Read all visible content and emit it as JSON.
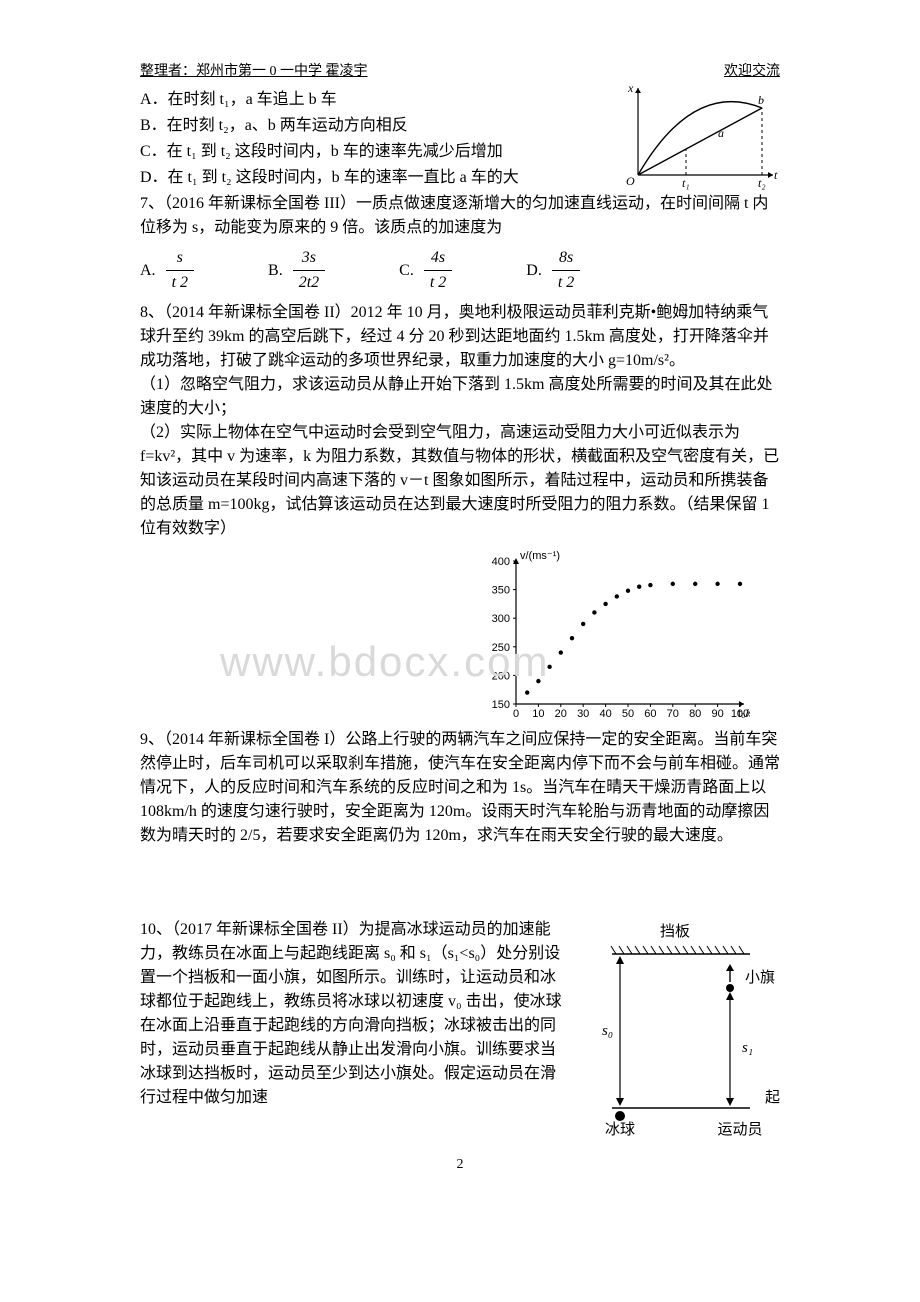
{
  "header": {
    "left": "整理者：郑州市第一 0 一中学  霍凌宇",
    "right": "欢迎交流"
  },
  "q6": {
    "A": "A．在时刻 t₁，a 车追上 b 车",
    "B": "B．在时刻 t₂，a、b 两车运动方向相反",
    "C": "C．在 t₁ 到 t₂ 这段时间内，b 车的速率先减少后增加",
    "D": "D．在 t₁ 到 t₂ 这段时间内，b 车的速率一直比 a 车的大"
  },
  "q7": {
    "stem": "7、（2016 年新课标全国卷 III）一质点做速度逐渐增大的匀加速直线运动，在时间间隔 t 内位移为 s，动能变为原来的 9 倍。该质点的加速度为",
    "options": {
      "A": {
        "label": "A.",
        "num": "s",
        "den": "t 2"
      },
      "B": {
        "label": "B.",
        "num": "3s",
        "den": "2t2"
      },
      "C": {
        "label": "C.",
        "num": "4s",
        "den": "t 2"
      },
      "D": {
        "label": "D.",
        "num": "8s",
        "den": "t 2"
      }
    }
  },
  "q8": {
    "stem": "8、（2014 年新课标全国卷 II）2012 年 10 月，奥地利极限运动员菲利克斯•鲍姆加特纳乘气球升至约 39km 的高空后跳下，经过 4 分 20 秒到达距地面约 1.5km 高度处，打开降落伞并成功落地，打破了跳伞运动的多项世界纪录，取重力加速度的大小 g=10m/s²。",
    "p1": "（1）忽略空气阻力，求该运动员从静止开始下落到 1.5km 高度处所需要的时间及其在此处速度的大小；",
    "p2": "（2）实际上物体在空气中运动时会受到空气阻力，高速运动受阻力大小可近似表示为 f=kv²，其中 v 为速率，k 为阻力系数，其数值与物体的形状，横截面积及空气密度有关，已知该运动员在某段时间内高速下落的 v－t 图象如图所示，着陆过程中，运动员和所携装备的总质量 m=100kg，试估算该运动员在达到最大速度时所受阻力的阻力系数。（结果保留 1 位有效数字）"
  },
  "q9": {
    "stem": "9、（2014 年新课标全国卷 I）公路上行驶的两辆汽车之间应保持一定的安全距离。当前车突然停止时，后车司机可以采取刹车措施，使汽车在安全距离内停下而不会与前车相碰。通常情况下，人的反应时间和汽车系统的反应时间之和为 1s。当汽车在晴天干燥沥青路面上以 108km/h 的速度匀速行驶时，安全距离为 120m。设雨天时汽车轮胎与沥青地面的动摩擦因数为晴天时的 2/5，若要求安全距离仍为 120m，求汽车在雨天安全行驶的最大速度。"
  },
  "q10": {
    "stem": "10、（2017 年新课标全国卷 II）为提高冰球运动员的加速能力，教练员在冰面上与起跑线距离 s₀ 和 s₁（s₁<s₀）处分别设置一个挡板和一面小旗，如图所示。训练时，让运动员和冰球都位于起跑线上，教练员将冰球以初速度 v₀ 击出，使冰球在冰面上沿垂直于起跑线的方向滑向挡板；冰球被击出的同时，运动员垂直于起跑线从静止出发滑向小旗。训练要求当冰球到达挡板时，运动员至少到达小旗处。假定运动员在滑行过程中做匀加速"
  },
  "watermark": "www.bdocx.com",
  "xt_chart": {
    "y_label": "x",
    "x_label": "t",
    "t1_label": "t₁",
    "t2_label": "t₂",
    "a_label": "a",
    "b_label": "b",
    "axis_color": "#000000",
    "curve_color": "#000000",
    "dash_color": "#000000"
  },
  "vt_chart": {
    "y_label": "v/(ms⁻¹)",
    "x_label": "t₀/s",
    "y_ticks": [
      150,
      200,
      250,
      300,
      350,
      400
    ],
    "x_ticks": [
      0,
      10,
      20,
      30,
      40,
      50,
      60,
      70,
      80,
      90,
      100
    ],
    "ylim": [
      150,
      400
    ],
    "xlim": [
      0,
      100
    ],
    "points": [
      {
        "x": 5,
        "y": 170
      },
      {
        "x": 10,
        "y": 190
      },
      {
        "x": 15,
        "y": 215
      },
      {
        "x": 20,
        "y": 240
      },
      {
        "x": 25,
        "y": 265
      },
      {
        "x": 30,
        "y": 290
      },
      {
        "x": 35,
        "y": 310
      },
      {
        "x": 40,
        "y": 325
      },
      {
        "x": 45,
        "y": 338
      },
      {
        "x": 50,
        "y": 348
      },
      {
        "x": 55,
        "y": 355
      },
      {
        "x": 60,
        "y": 358
      },
      {
        "x": 70,
        "y": 360
      },
      {
        "x": 80,
        "y": 360
      },
      {
        "x": 90,
        "y": 360
      },
      {
        "x": 100,
        "y": 360
      }
    ],
    "axis_color": "#000000",
    "point_color": "#000000",
    "marker_size": 2.2,
    "tick_fontsize": 11
  },
  "diagram": {
    "labels": {
      "board": "挡板",
      "flag": "小旗",
      "s0": "s₀",
      "s1": "s₁",
      "startline": "起跑线",
      "puck": "冰球",
      "athlete": "运动员"
    },
    "line_color": "#000000",
    "hatch_color": "#000000",
    "flag_fill": "#000000",
    "puck_fill": "#000000"
  },
  "pagenum": "2"
}
